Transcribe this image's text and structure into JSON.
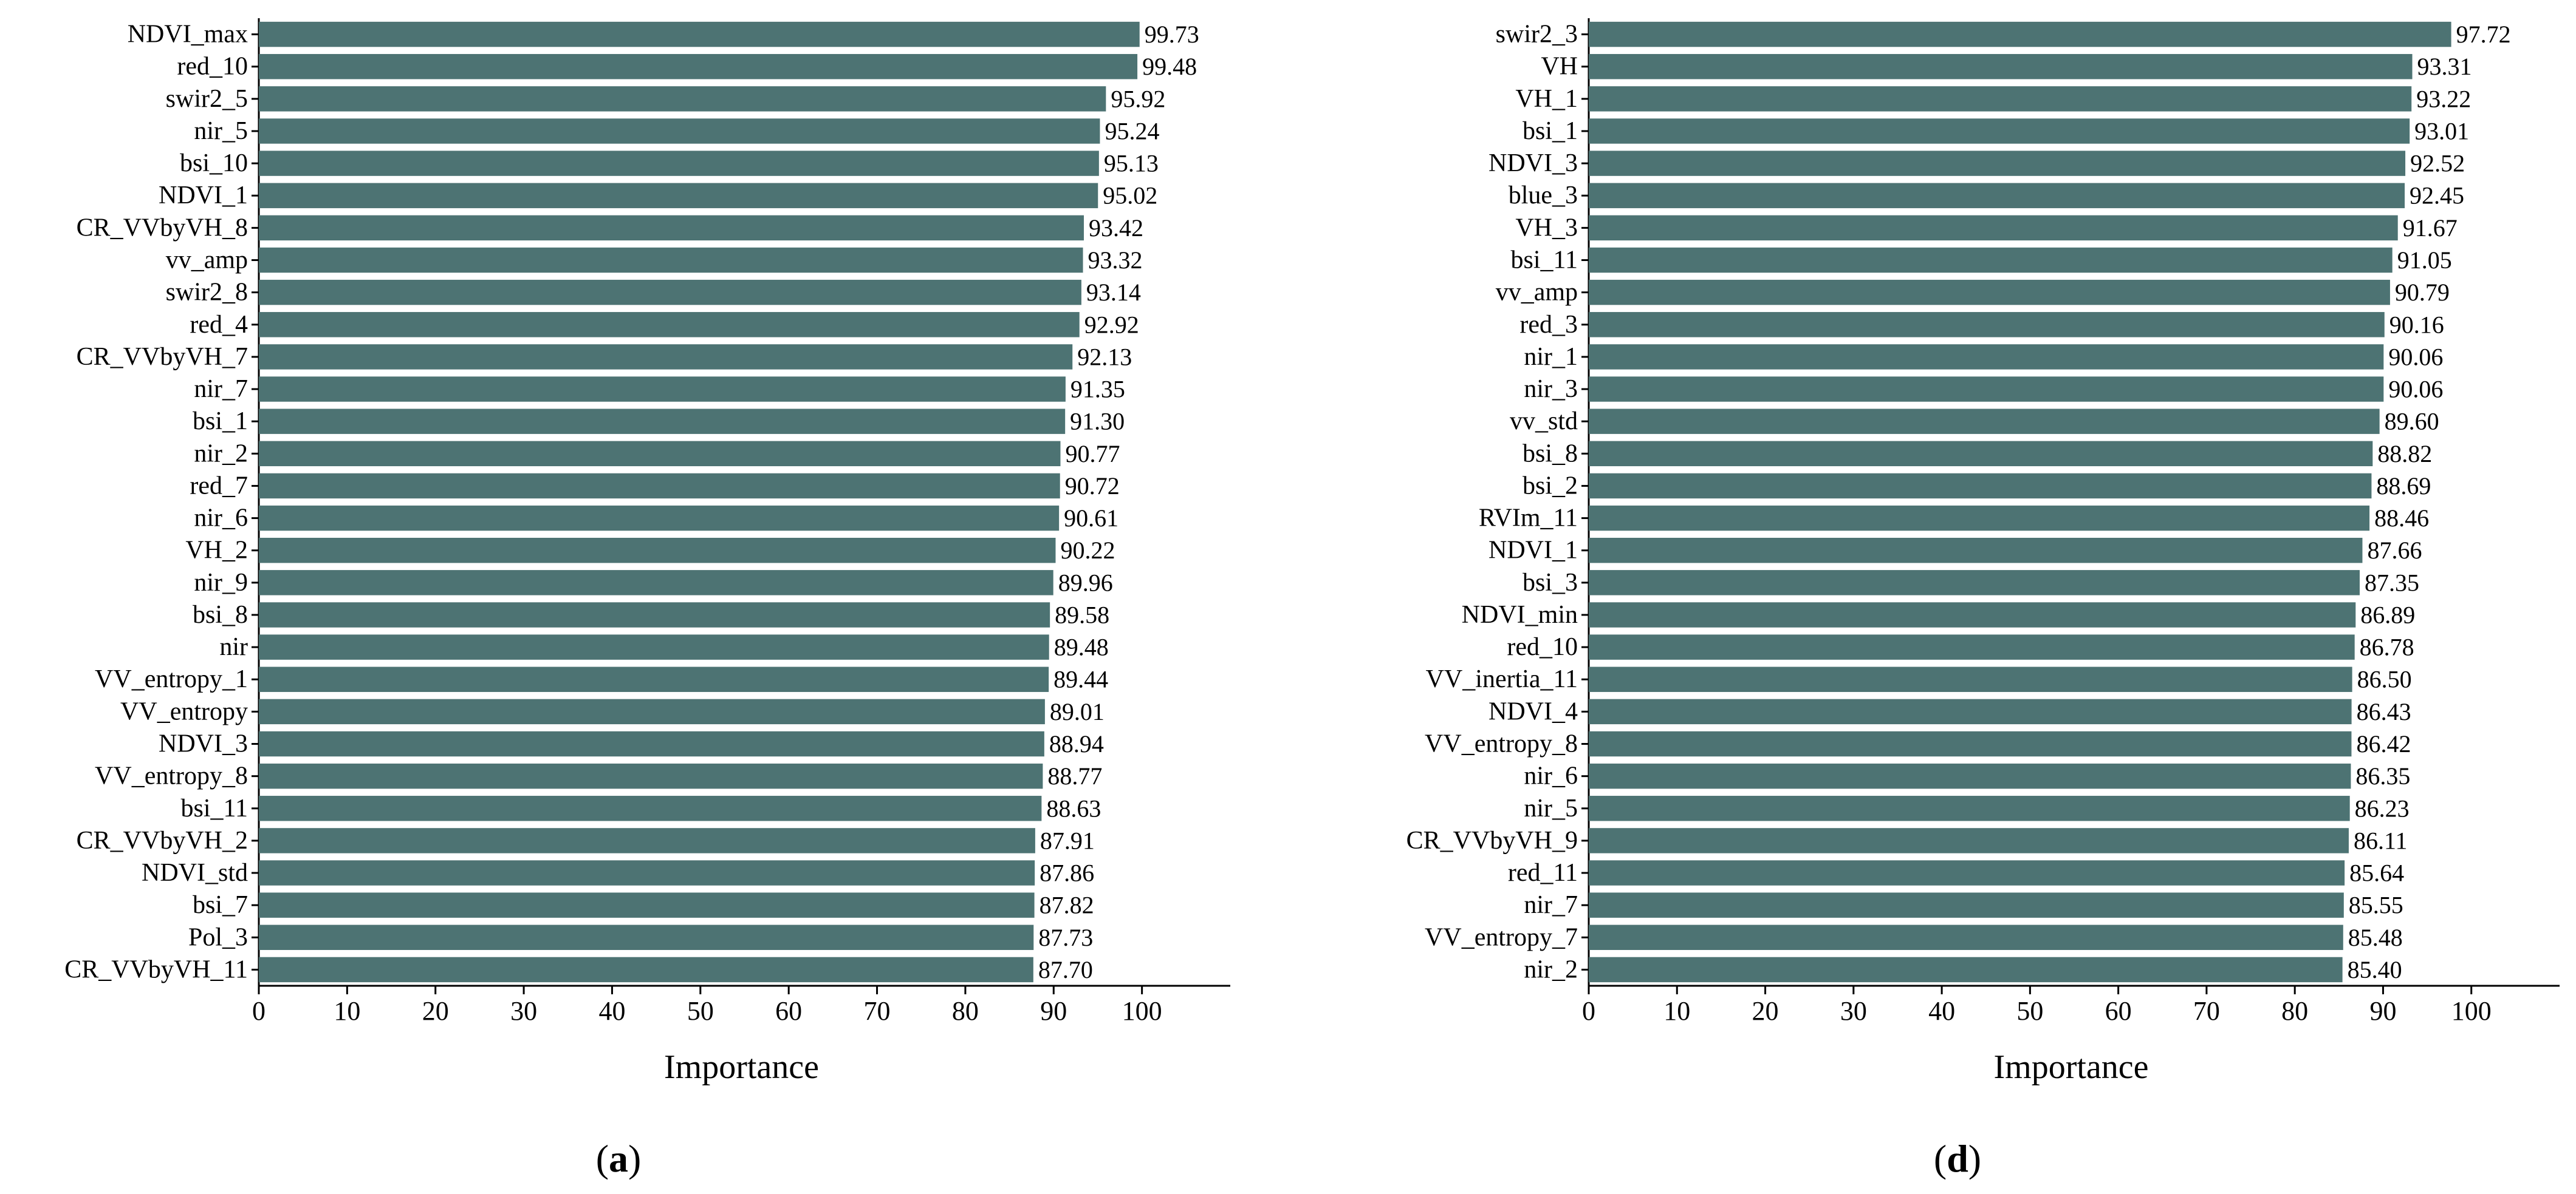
{
  "bar_color": "#4d7373",
  "chart_data": [
    {
      "type": "bar",
      "orientation": "horizontal",
      "panel_label": "a",
      "xlabel": "Importance",
      "xlim": [
        0,
        110
      ],
      "xticks": [
        0,
        10,
        20,
        30,
        40,
        50,
        60,
        70,
        80,
        90,
        100
      ],
      "categories": [
        "NDVI_max",
        "red_10",
        "swir2_5",
        "nir_5",
        "bsi_10",
        "NDVI_1",
        "CR_VVbyVH_8",
        "vv_amp",
        "swir2_8",
        "red_4",
        "CR_VVbyVH_7",
        "nir_7",
        "bsi_1",
        "nir_2",
        "red_7",
        "nir_6",
        "VH_2",
        "nir_9",
        "bsi_8",
        "nir",
        "VV_entropy_1",
        "VV_entropy",
        "NDVI_3",
        "VV_entropy_8",
        "bsi_11",
        "CR_VVbyVH_2",
        "NDVI_std",
        "bsi_7",
        "Pol_3",
        "CR_VVbyVH_11"
      ],
      "values": [
        99.73,
        99.48,
        95.92,
        95.24,
        95.13,
        95.02,
        93.42,
        93.32,
        93.14,
        92.92,
        92.13,
        91.35,
        91.3,
        90.77,
        90.72,
        90.61,
        90.22,
        89.96,
        89.58,
        89.48,
        89.44,
        89.01,
        88.94,
        88.77,
        88.63,
        87.91,
        87.86,
        87.82,
        87.73,
        87.7
      ],
      "value_labels": [
        "99.73",
        "99.48",
        "95.92",
        "95.24",
        "95.13",
        "95.02",
        "93.42",
        "93.32",
        "93.14",
        "92.92",
        "92.13",
        "91.35",
        "91.30",
        "90.77",
        "90.72",
        "90.61",
        "90.22",
        "89.96",
        "89.58",
        "89.48",
        "89.44",
        "89.01",
        "88.94",
        "88.77",
        "88.63",
        "87.91",
        "87.86",
        "87.82",
        "87.73",
        "87.70"
      ]
    },
    {
      "type": "bar",
      "orientation": "horizontal",
      "panel_label": "d",
      "xlabel": "Importance",
      "xlim": [
        0,
        110
      ],
      "xticks": [
        0,
        10,
        20,
        30,
        40,
        50,
        60,
        70,
        80,
        90,
        100
      ],
      "categories": [
        "swir2_3",
        "VH",
        "VH_1",
        "bsi_1",
        "NDVI_3",
        "blue_3",
        "VH_3",
        "bsi_11",
        "vv_amp",
        "red_3",
        "nir_1",
        "nir_3",
        "vv_std",
        "bsi_8",
        "bsi_2",
        "RVIm_11",
        "NDVI_1",
        "bsi_3",
        "NDVI_min",
        "red_10",
        "VV_inertia_11",
        "NDVI_4",
        "VV_entropy_8",
        "nir_6",
        "nir_5",
        "CR_VVbyVH_9",
        "red_11",
        "nir_7",
        "VV_entropy_7",
        "nir_2"
      ],
      "values": [
        97.72,
        93.31,
        93.22,
        93.01,
        92.52,
        92.45,
        91.67,
        91.05,
        90.79,
        90.16,
        90.06,
        90.06,
        89.6,
        88.82,
        88.69,
        88.46,
        87.66,
        87.35,
        86.89,
        86.78,
        86.5,
        86.43,
        86.42,
        86.35,
        86.23,
        86.11,
        85.64,
        85.55,
        85.48,
        85.4
      ],
      "value_labels": [
        "97.72",
        "93.31",
        "93.22",
        "93.01",
        "92.52",
        "92.45",
        "91.67",
        "91.05",
        "90.79",
        "90.16",
        "90.06",
        "90.06",
        "89.60",
        "88.82",
        "88.69",
        "88.46",
        "87.66",
        "87.35",
        "86.89",
        "86.78",
        "86.50",
        "86.43",
        "86.42",
        "86.35",
        "86.23",
        "86.11",
        "85.64",
        "85.55",
        "85.48",
        "85.40"
      ]
    }
  ]
}
